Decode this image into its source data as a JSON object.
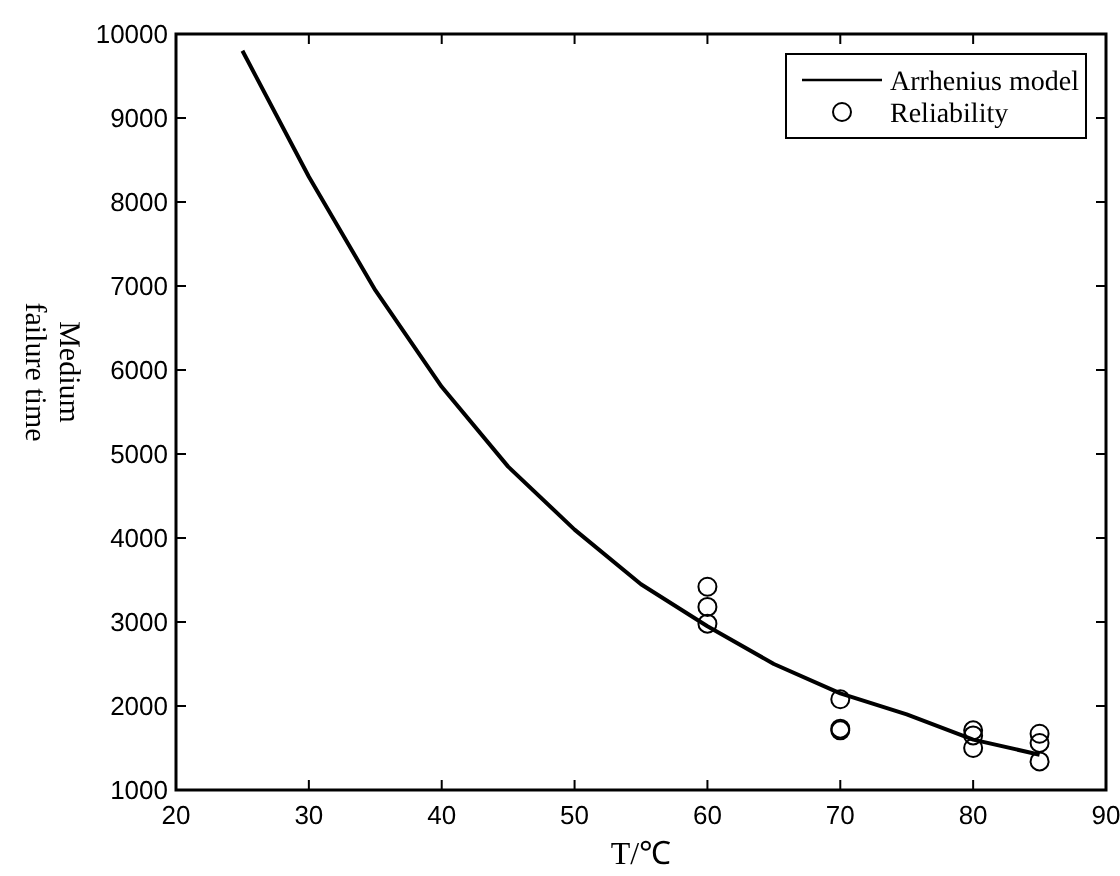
{
  "chart_data": {
    "type": "line",
    "xlabel": "T/℃",
    "ylabel": "Medium\nfailure time",
    "xlim": [
      20,
      90
    ],
    "xticks": [
      20,
      30,
      40,
      50,
      60,
      70,
      80,
      90
    ],
    "ylim": [
      1000,
      10000
    ],
    "yticks": [
      1000,
      2000,
      3000,
      4000,
      5000,
      6000,
      7000,
      8000,
      9000,
      10000
    ],
    "legend": "top right",
    "grid": false,
    "series": [
      {
        "name": "Arrhenius model",
        "color": "#000000",
        "marker": "none",
        "line_style": "solid",
        "x": [
          25,
          30,
          35,
          40,
          45,
          50,
          55,
          60,
          65,
          70,
          75,
          80,
          85
        ],
        "values": [
          9800,
          8300,
          6950,
          5800,
          4850,
          4100,
          3450,
          2950,
          2500,
          2150,
          1900,
          1600,
          1420
        ]
      },
      {
        "name": "Reliability",
        "type": "scatter",
        "color": "#000000",
        "marker": "circle",
        "x": [
          60,
          60,
          60,
          70,
          70,
          70,
          80,
          80,
          80,
          85,
          85,
          85
        ],
        "values": [
          3420,
          3180,
          2980,
          2080,
          1730,
          1710,
          1710,
          1650,
          1500,
          1670,
          1560,
          1340
        ]
      }
    ]
  }
}
